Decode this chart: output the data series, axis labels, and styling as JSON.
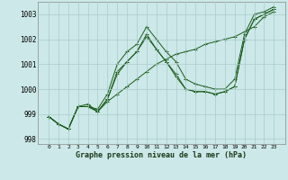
{
  "xlabel": "Graphe pression niveau de la mer (hPa)",
  "background_color": "#cce8e8",
  "grid_color": "#aacccc",
  "line_color": "#1a5c1a",
  "x": [
    0,
    1,
    2,
    3,
    4,
    5,
    6,
    7,
    8,
    9,
    10,
    11,
    12,
    13,
    14,
    15,
    16,
    17,
    18,
    19,
    20,
    21,
    22,
    23
  ],
  "series": [
    [
      998.9,
      998.6,
      998.4,
      999.3,
      999.3,
      999.1,
      999.5,
      999.8,
      1000.1,
      1000.4,
      1000.7,
      1001.0,
      1001.2,
      1001.4,
      1001.5,
      1001.6,
      1001.8,
      1001.9,
      1002.0,
      1002.1,
      1002.3,
      1002.5,
      1002.9,
      1003.1
    ],
    [
      998.9,
      998.6,
      998.4,
      999.3,
      999.4,
      999.1,
      999.6,
      1000.6,
      1001.1,
      1001.5,
      1002.1,
      1001.6,
      1001.1,
      1000.6,
      1000.0,
      999.9,
      999.9,
      999.8,
      999.9,
      1000.1,
      1002.0,
      1002.8,
      1003.0,
      1003.2
    ],
    [
      998.9,
      998.6,
      998.4,
      999.3,
      999.3,
      999.1,
      999.6,
      1000.7,
      1001.1,
      1001.5,
      1002.2,
      1001.6,
      1001.1,
      1000.5,
      1000.0,
      999.9,
      999.9,
      999.8,
      999.9,
      1000.1,
      1002.0,
      1002.8,
      1003.0,
      1003.2
    ],
    [
      998.9,
      998.6,
      998.4,
      999.3,
      999.3,
      999.2,
      999.8,
      1001.0,
      1001.5,
      1001.8,
      1002.5,
      1002.0,
      1001.5,
      1001.1,
      1000.4,
      1000.2,
      1000.1,
      1000.0,
      1000.0,
      1000.4,
      1002.2,
      1003.0,
      1003.1,
      1003.3
    ]
  ],
  "ylim": [
    997.8,
    1003.5
  ],
  "yticks": [
    998,
    999,
    1000,
    1001,
    1002,
    1003
  ],
  "xticks": [
    0,
    1,
    2,
    3,
    4,
    5,
    6,
    7,
    8,
    9,
    10,
    11,
    12,
    13,
    14,
    15,
    16,
    17,
    18,
    19,
    20,
    21,
    22,
    23
  ],
  "marker": "+",
  "figsize": [
    3.2,
    2.0
  ],
  "dpi": 100
}
